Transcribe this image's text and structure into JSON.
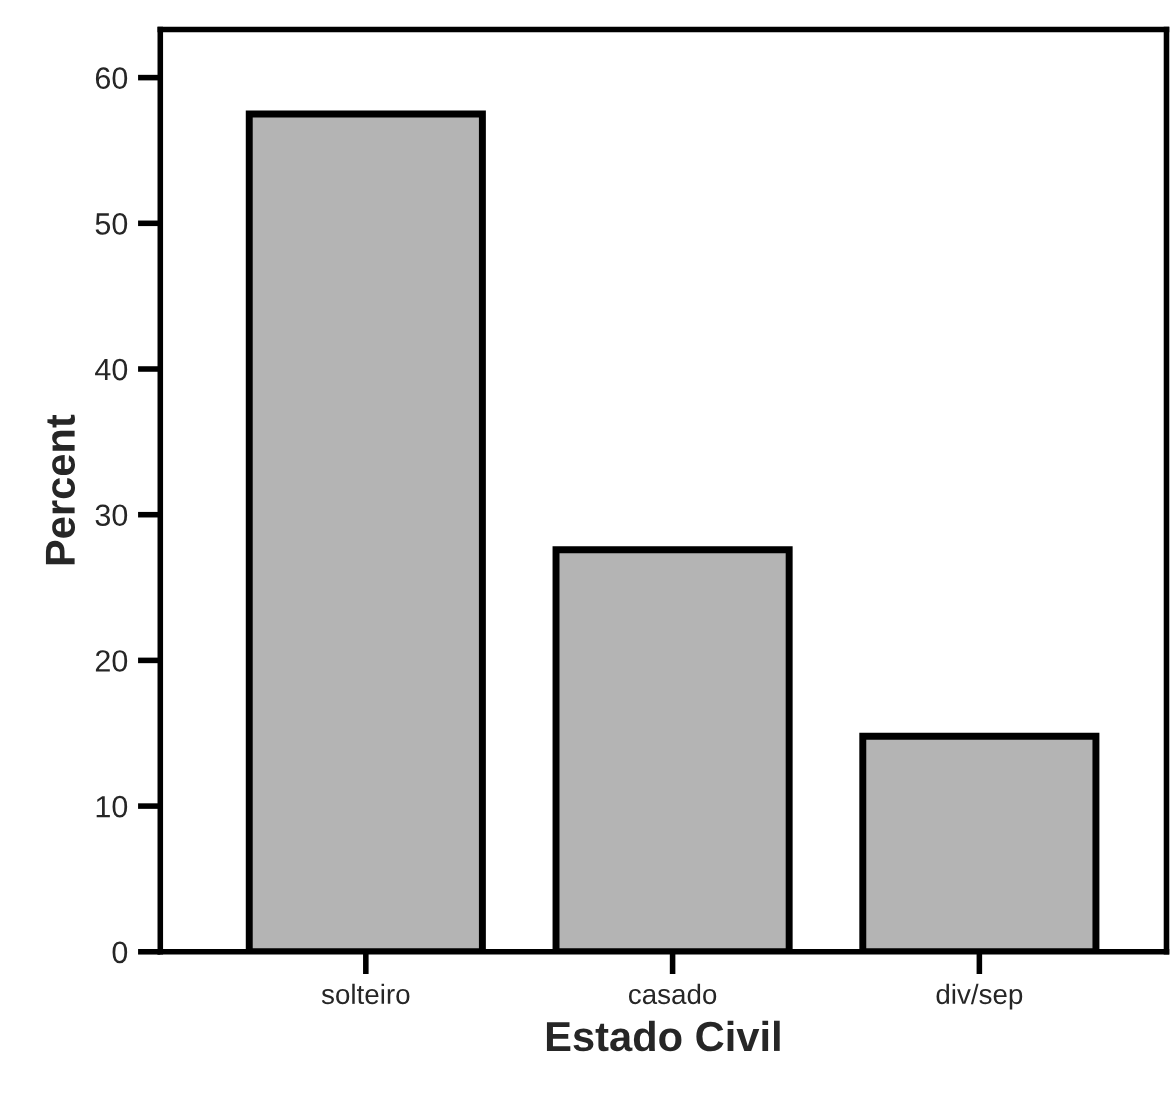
{
  "chart_data": {
    "type": "bar",
    "xlabel": "Estado Civil",
    "ylabel": "Percent",
    "categories": [
      "solteiro",
      "casado",
      "div/sep"
    ],
    "values": [
      57.5,
      27.6,
      14.8
    ],
    "color": "#b4b4b4",
    "ylim": [
      0,
      63.3
    ],
    "yticks": [
      0,
      10,
      20,
      30,
      40,
      50,
      60
    ],
    "grid": false,
    "legend": false
  }
}
